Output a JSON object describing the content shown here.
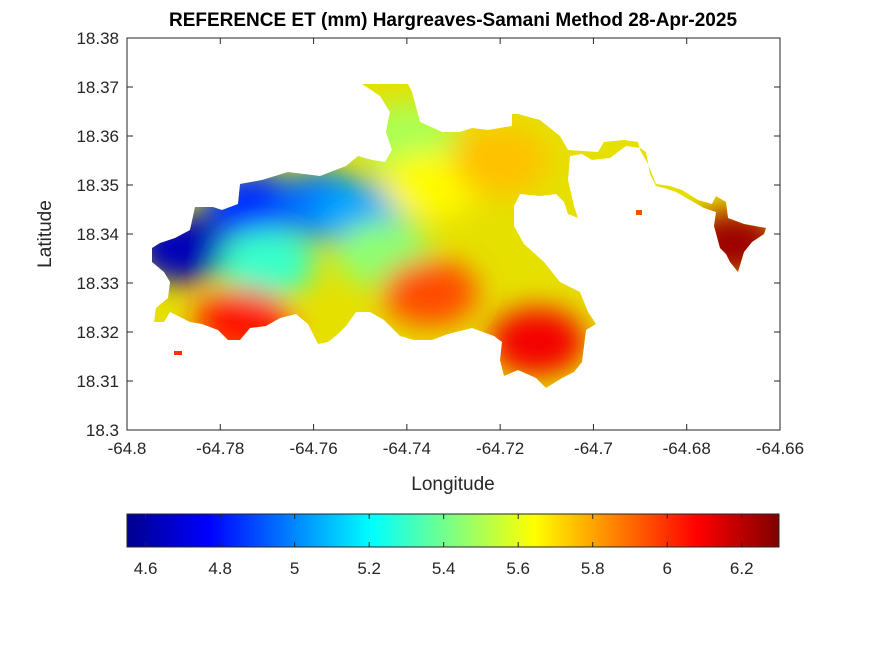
{
  "chart_data": {
    "type": "heatmap",
    "title": "REFERENCE ET (mm) Hargreaves-Samani Method  28-Apr-2025",
    "xlabel": "Longitude",
    "ylabel": "Latitude",
    "xlim": [
      -64.8,
      -64.66
    ],
    "ylim": [
      18.3,
      18.38
    ],
    "x_ticks": [
      "-64.8",
      "-64.78",
      "-64.76",
      "-64.74",
      "-64.72",
      "-64.7",
      "-64.68",
      "-64.66"
    ],
    "y_ticks": [
      "18.3",
      "18.31",
      "18.32",
      "18.33",
      "18.34",
      "18.35",
      "18.36",
      "18.37",
      "18.38"
    ],
    "colorbar": {
      "colormap": "jet",
      "range": [
        4.55,
        6.3
      ],
      "ticks": [
        "4.6",
        "4.8",
        "5",
        "5.2",
        "5.4",
        "5.6",
        "5.8",
        "6",
        "6.2"
      ],
      "location": "southoutside"
    },
    "grid": false,
    "regions": [
      {
        "lon": -64.788,
        "lat": 18.337,
        "value": 4.65
      },
      {
        "lon": -64.773,
        "lat": 18.346,
        "value": 4.85
      },
      {
        "lon": -64.758,
        "lat": 18.346,
        "value": 4.95
      },
      {
        "lon": -64.75,
        "lat": 18.344,
        "value": 5.05
      },
      {
        "lon": -64.77,
        "lat": 18.334,
        "value": 5.3
      },
      {
        "lon": -64.745,
        "lat": 18.336,
        "value": 5.45
      },
      {
        "lon": -64.74,
        "lat": 18.36,
        "value": 5.5
      },
      {
        "lon": -64.735,
        "lat": 18.35,
        "value": 5.65
      },
      {
        "lon": -64.72,
        "lat": 18.355,
        "value": 5.75
      },
      {
        "lon": -64.735,
        "lat": 18.328,
        "value": 5.95
      },
      {
        "lon": -64.775,
        "lat": 18.322,
        "value": 6.05
      },
      {
        "lon": -64.712,
        "lat": 18.318,
        "value": 6.1
      },
      {
        "lon": -64.67,
        "lat": 18.338,
        "value": 6.25
      }
    ]
  }
}
